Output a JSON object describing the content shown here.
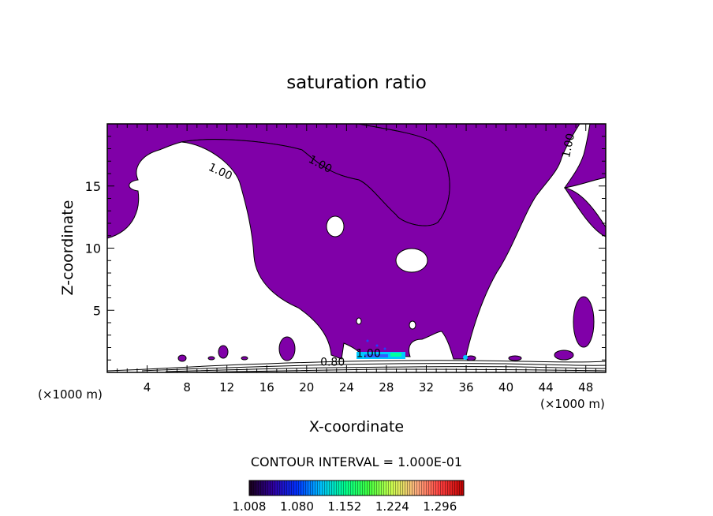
{
  "chart_data": {
    "type": "contour",
    "title": "saturation ratio",
    "xlabel": "X-coordinate",
    "ylabel": "Z-coordinate",
    "x_unit": "(×1000 m)",
    "z_unit": "(×1000 m)",
    "xlim": [
      0,
      50
    ],
    "ylim": [
      0,
      20
    ],
    "x_ticks": [
      4,
      8,
      12,
      16,
      20,
      24,
      28,
      32,
      36,
      40,
      44,
      48
    ],
    "y_ticks": [
      5,
      10,
      15
    ],
    "contour_labels": [
      {
        "text": "1.00",
        "x": 11.2,
        "y": 15.9,
        "angle": 25
      },
      {
        "text": "1.00",
        "x": 21.2,
        "y": 16.5,
        "angle": 28
      },
      {
        "text": "1.00",
        "x": 46.6,
        "y": 18.2,
        "angle": -78
      },
      {
        "text": "1.00",
        "x": 26.2,
        "y": 1.25,
        "angle": 0
      },
      {
        "text": "0.80",
        "x": 22.6,
        "y": 0.55,
        "angle": 0
      }
    ],
    "contour_interval_text": "CONTOUR INTERVAL = 1.000E-01",
    "colorbar": {
      "min": 1.008,
      "max": 1.332,
      "tick_labels": [
        "1.008",
        "1.080",
        "1.152",
        "1.224",
        "1.296"
      ],
      "colors": [
        "#180018",
        "#3000a0",
        "#0030ff",
        "#00c0ff",
        "#00ff90",
        "#40ff40",
        "#d0ff50",
        "#ffb080",
        "#ff4040",
        "#c00000"
      ]
    },
    "fill_color": "#8000a8",
    "grid": false
  }
}
